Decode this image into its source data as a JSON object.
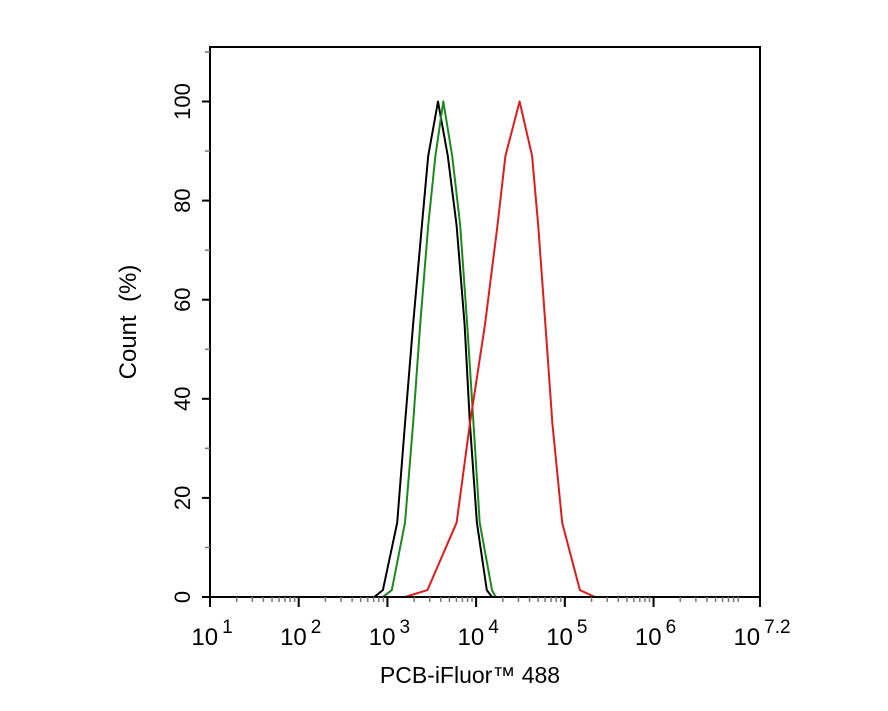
{
  "chart_data": {
    "type": "line",
    "title": "",
    "xlabel": "PCB-iFluor™ 488",
    "ylabel": "Count  (%)",
    "x_scale": "log",
    "xlim": [
      10,
      15848932
    ],
    "ylim": [
      0,
      111
    ],
    "x_tick_labels": [
      {
        "base": "10",
        "exp": "1",
        "value": 10
      },
      {
        "base": "10",
        "exp": "2",
        "value": 100
      },
      {
        "base": "10",
        "exp": "3",
        "value": 1000
      },
      {
        "base": "10",
        "exp": "4",
        "value": 10000
      },
      {
        "base": "10",
        "exp": "5",
        "value": 100000
      },
      {
        "base": "10",
        "exp": "6",
        "value": 1000000
      },
      {
        "base": "10",
        "exp": "7.2",
        "value": 15848932
      }
    ],
    "y_ticks": [
      "0",
      "20",
      "40",
      "60",
      "80",
      "100"
    ],
    "grid": false,
    "legend": "none",
    "series": [
      {
        "color": "#000000",
        "x": [
          710,
          890,
          1290,
          1580,
          1950,
          2450,
          2880,
          3720,
          4790,
          6030,
          7410,
          8510,
          10200,
          13200,
          15100
        ],
        "y": [
          0,
          1.4,
          15,
          35,
          55,
          75,
          89,
          100,
          89,
          75,
          55,
          35,
          15,
          1.4,
          0
        ]
      },
      {
        "color": "#1a8a1a",
        "x": [
          890,
          1120,
          1580,
          1950,
          2340,
          2880,
          3470,
          4270,
          5370,
          6610,
          7940,
          9330,
          10960,
          15100,
          16600
        ],
        "y": [
          0,
          1.4,
          15,
          35,
          55,
          75,
          89,
          100,
          89,
          75,
          55,
          35,
          15,
          1.4,
          0
        ]
      },
      {
        "color": "#e01b1b",
        "x": [
          1580,
          2820,
          6030,
          8510,
          12600,
          17400,
          21400,
          30900,
          42700,
          50100,
          60300,
          72400,
          93300,
          148000,
          219000
        ],
        "y": [
          0,
          1.4,
          15,
          35,
          55,
          75,
          89,
          100,
          89,
          75,
          55,
          35,
          15,
          1.4,
          0
        ]
      }
    ]
  }
}
